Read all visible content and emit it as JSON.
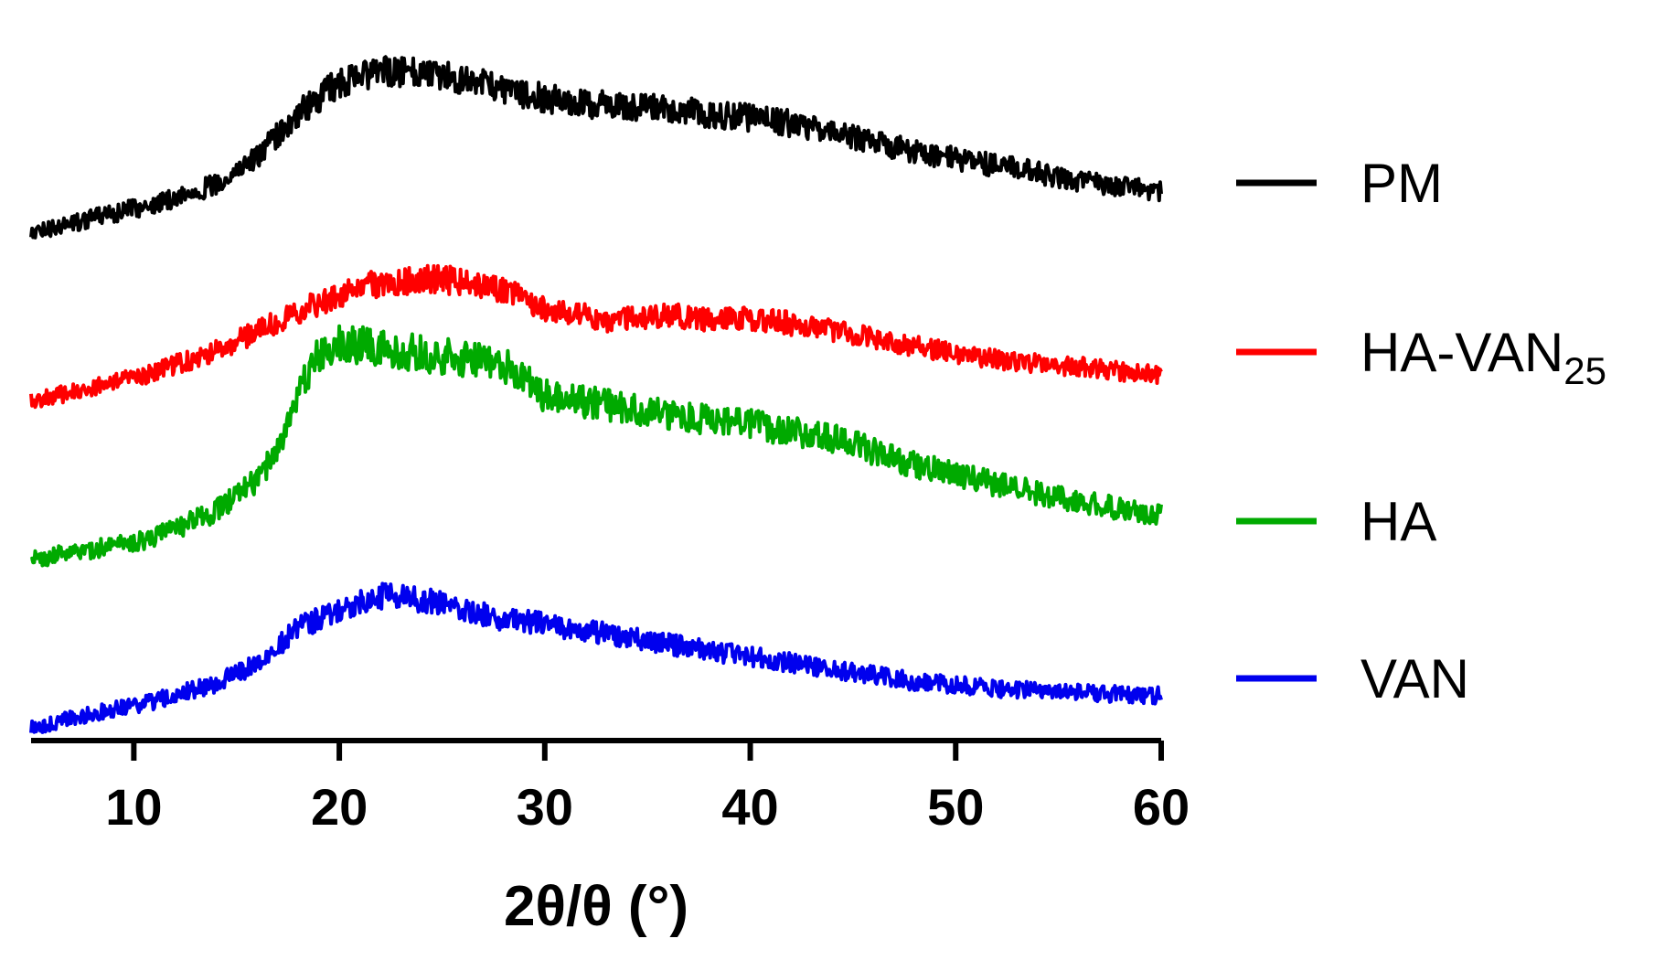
{
  "chart_data": {
    "type": "line",
    "title": "",
    "xlabel": "2θ/θ (°)",
    "ylabel": "",
    "xlim": [
      5,
      60
    ],
    "x_ticks": [
      10,
      20,
      30,
      40,
      50,
      60
    ],
    "x_tick_labels": [
      "10",
      "20",
      "30",
      "40",
      "50",
      "60"
    ],
    "y_axis_visible": false,
    "grid": false,
    "legend_position": "right",
    "series": [
      {
        "name": "PM",
        "name_main": "PM",
        "name_sub": "",
        "color": "#000000",
        "x": [
          5,
          8,
          11,
          14,
          16,
          18,
          20,
          22,
          24,
          26,
          28,
          30,
          32,
          35,
          38,
          41,
          44,
          47,
          50,
          53,
          56,
          60
        ],
        "y": [
          0.03,
          0.11,
          0.18,
          0.28,
          0.42,
          0.64,
          0.8,
          0.85,
          0.86,
          0.82,
          0.76,
          0.72,
          0.69,
          0.67,
          0.64,
          0.61,
          0.55,
          0.47,
          0.41,
          0.36,
          0.3,
          0.24
        ]
      },
      {
        "name": "HA-VAN25",
        "name_main": "HA-VAN",
        "name_sub": "25",
        "color": "#ff0000",
        "x": [
          5,
          8,
          11,
          14,
          17,
          20,
          22,
          24,
          26,
          28,
          30,
          33,
          36,
          38,
          40,
          43,
          46,
          50,
          53,
          56,
          60
        ],
        "y": [
          0.02,
          0.09,
          0.18,
          0.3,
          0.46,
          0.62,
          0.68,
          0.7,
          0.69,
          0.64,
          0.54,
          0.47,
          0.5,
          0.47,
          0.48,
          0.44,
          0.37,
          0.28,
          0.24,
          0.21,
          0.16
        ]
      },
      {
        "name": "HA",
        "name_main": "HA",
        "name_sub": "",
        "color": "#00aa00",
        "x": [
          5,
          8,
          11,
          14,
          16,
          17,
          18,
          19,
          20,
          22,
          24,
          26,
          28,
          30,
          33,
          36,
          40,
          44,
          48,
          52,
          56,
          60
        ],
        "y": [
          0.02,
          0.07,
          0.12,
          0.24,
          0.38,
          0.52,
          0.78,
          0.95,
          1.0,
          0.98,
          0.95,
          0.93,
          0.9,
          0.76,
          0.72,
          0.68,
          0.63,
          0.57,
          0.45,
          0.36,
          0.28,
          0.22
        ]
      },
      {
        "name": "VAN",
        "name_main": "VAN",
        "name_sub": "",
        "color": "#0000ee",
        "x": [
          5,
          8,
          11,
          14,
          16,
          18,
          20,
          22,
          24,
          26,
          28,
          30,
          33,
          36,
          40,
          44,
          48,
          52,
          56,
          60
        ],
        "y": [
          0.02,
          0.1,
          0.17,
          0.27,
          0.38,
          0.58,
          0.68,
          0.76,
          0.74,
          0.69,
          0.63,
          0.6,
          0.55,
          0.49,
          0.42,
          0.35,
          0.28,
          0.24,
          0.22,
          0.2
        ]
      }
    ]
  }
}
